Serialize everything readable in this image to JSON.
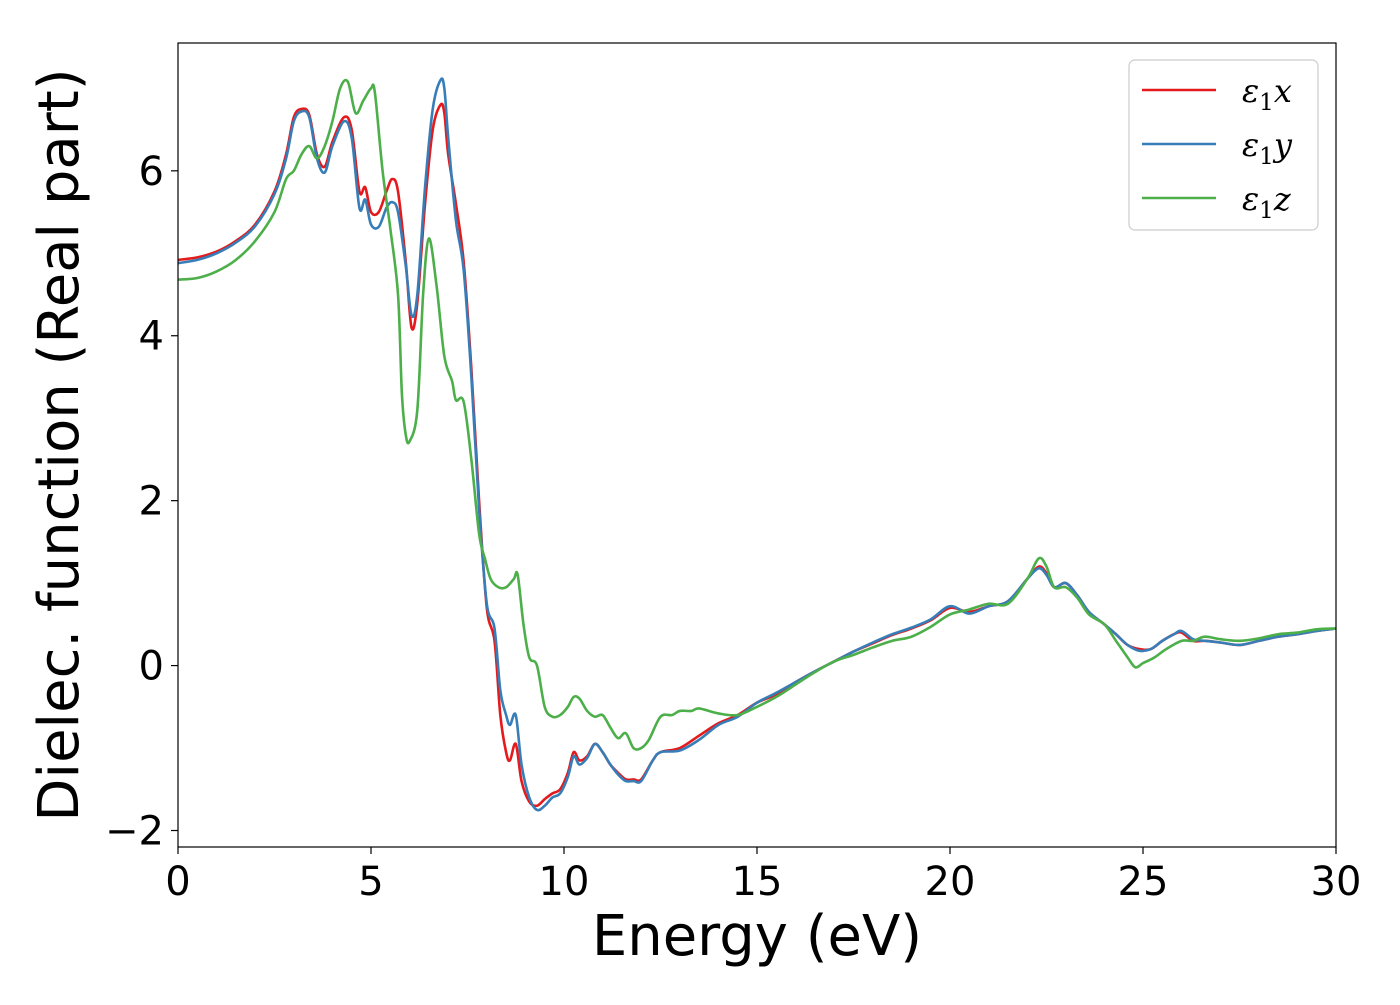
{
  "chart_data": {
    "type": "line",
    "title": "",
    "xlabel": "Energy (eV)",
    "ylabel": "Dielec. function (Real part)",
    "xlim": [
      0,
      30
    ],
    "ylim": [
      -2.2,
      7.55
    ],
    "xticks": [
      0,
      5,
      10,
      15,
      20,
      25,
      30
    ],
    "yticks": [
      -2,
      0,
      2,
      4,
      6
    ],
    "xtick_labels": [
      "0",
      "5",
      "10",
      "15",
      "20",
      "25",
      "30"
    ],
    "ytick_labels": [
      "−2",
      "0",
      "2",
      "4",
      "6"
    ],
    "grid": false,
    "legend_position": "top-right",
    "series": [
      {
        "name": "ε₁x",
        "legend": {
          "base": "ε",
          "sub": "1",
          "var": "x"
        },
        "color": "#e41a1c",
        "points": [
          [
            0,
            4.92
          ],
          [
            0.5,
            4.95
          ],
          [
            1,
            5.02
          ],
          [
            1.5,
            5.15
          ],
          [
            2,
            5.35
          ],
          [
            2.5,
            5.75
          ],
          [
            2.8,
            6.2
          ],
          [
            3.0,
            6.65
          ],
          [
            3.2,
            6.75
          ],
          [
            3.4,
            6.68
          ],
          [
            3.6,
            6.2
          ],
          [
            3.8,
            6.05
          ],
          [
            4.0,
            6.35
          ],
          [
            4.3,
            6.65
          ],
          [
            4.5,
            6.5
          ],
          [
            4.7,
            5.75
          ],
          [
            4.85,
            5.8
          ],
          [
            5.0,
            5.5
          ],
          [
            5.2,
            5.5
          ],
          [
            5.4,
            5.75
          ],
          [
            5.55,
            5.9
          ],
          [
            5.7,
            5.75
          ],
          [
            5.9,
            4.9
          ],
          [
            6.05,
            4.1
          ],
          [
            6.2,
            4.4
          ],
          [
            6.4,
            5.6
          ],
          [
            6.6,
            6.5
          ],
          [
            6.8,
            6.8
          ],
          [
            6.9,
            6.7
          ],
          [
            7.0,
            6.2
          ],
          [
            7.2,
            5.6
          ],
          [
            7.4,
            4.9
          ],
          [
            7.6,
            3.6
          ],
          [
            7.8,
            2.0
          ],
          [
            8.0,
            0.7
          ],
          [
            8.2,
            0.3
          ],
          [
            8.35,
            -0.6
          ],
          [
            8.5,
            -1.05
          ],
          [
            8.6,
            -1.15
          ],
          [
            8.75,
            -0.95
          ],
          [
            8.9,
            -1.4
          ],
          [
            9.1,
            -1.65
          ],
          [
            9.3,
            -1.7
          ],
          [
            9.5,
            -1.62
          ],
          [
            9.7,
            -1.55
          ],
          [
            9.9,
            -1.5
          ],
          [
            10.1,
            -1.3
          ],
          [
            10.25,
            -1.05
          ],
          [
            10.4,
            -1.15
          ],
          [
            10.6,
            -1.1
          ],
          [
            10.8,
            -0.95
          ],
          [
            11.0,
            -1.05
          ],
          [
            11.2,
            -1.2
          ],
          [
            11.4,
            -1.3
          ],
          [
            11.6,
            -1.38
          ],
          [
            11.8,
            -1.38
          ],
          [
            12.0,
            -1.38
          ],
          [
            12.3,
            -1.15
          ],
          [
            12.5,
            -1.05
          ],
          [
            13.0,
            -1.0
          ],
          [
            13.5,
            -0.85
          ],
          [
            14.0,
            -0.7
          ],
          [
            14.5,
            -0.6
          ],
          [
            15.0,
            -0.45
          ],
          [
            15.5,
            -0.35
          ],
          [
            16.0,
            -0.2
          ],
          [
            16.5,
            -0.07
          ],
          [
            17.0,
            0.05
          ],
          [
            17.5,
            0.17
          ],
          [
            18.0,
            0.27
          ],
          [
            18.5,
            0.37
          ],
          [
            19.0,
            0.45
          ],
          [
            19.5,
            0.55
          ],
          [
            20.0,
            0.7
          ],
          [
            20.5,
            0.65
          ],
          [
            21.0,
            0.72
          ],
          [
            21.5,
            0.78
          ],
          [
            22.0,
            1.05
          ],
          [
            22.3,
            1.2
          ],
          [
            22.5,
            1.12
          ],
          [
            22.7,
            0.95
          ],
          [
            23.0,
            1.0
          ],
          [
            23.3,
            0.85
          ],
          [
            23.6,
            0.65
          ],
          [
            24.0,
            0.5
          ],
          [
            24.3,
            0.38
          ],
          [
            24.6,
            0.25
          ],
          [
            24.9,
            0.2
          ],
          [
            25.2,
            0.2
          ],
          [
            25.5,
            0.3
          ],
          [
            25.8,
            0.38
          ],
          [
            26.0,
            0.4
          ],
          [
            26.3,
            0.3
          ],
          [
            26.6,
            0.3
          ],
          [
            27.0,
            0.28
          ],
          [
            27.5,
            0.25
          ],
          [
            28.0,
            0.3
          ],
          [
            28.5,
            0.35
          ],
          [
            29.0,
            0.38
          ],
          [
            29.5,
            0.42
          ],
          [
            30.0,
            0.45
          ]
        ]
      },
      {
        "name": "ε₁y",
        "legend": {
          "base": "ε",
          "sub": "1",
          "var": "y"
        },
        "color": "#377eb8",
        "points": [
          [
            0,
            4.88
          ],
          [
            0.5,
            4.92
          ],
          [
            1,
            5.0
          ],
          [
            1.5,
            5.13
          ],
          [
            2,
            5.33
          ],
          [
            2.5,
            5.72
          ],
          [
            2.8,
            6.15
          ],
          [
            3.0,
            6.6
          ],
          [
            3.2,
            6.72
          ],
          [
            3.4,
            6.65
          ],
          [
            3.6,
            6.15
          ],
          [
            3.8,
            5.98
          ],
          [
            4.0,
            6.3
          ],
          [
            4.3,
            6.6
          ],
          [
            4.5,
            6.4
          ],
          [
            4.7,
            5.55
          ],
          [
            4.85,
            5.65
          ],
          [
            5.0,
            5.35
          ],
          [
            5.2,
            5.32
          ],
          [
            5.4,
            5.55
          ],
          [
            5.55,
            5.62
          ],
          [
            5.7,
            5.5
          ],
          [
            5.9,
            4.85
          ],
          [
            6.05,
            4.25
          ],
          [
            6.2,
            4.5
          ],
          [
            6.4,
            5.8
          ],
          [
            6.6,
            6.75
          ],
          [
            6.8,
            7.1
          ],
          [
            6.9,
            7.0
          ],
          [
            7.0,
            6.4
          ],
          [
            7.2,
            5.4
          ],
          [
            7.4,
            4.8
          ],
          [
            7.6,
            3.5
          ],
          [
            7.8,
            1.9
          ],
          [
            8.0,
            0.75
          ],
          [
            8.2,
            0.45
          ],
          [
            8.35,
            -0.3
          ],
          [
            8.5,
            -0.6
          ],
          [
            8.6,
            -0.72
          ],
          [
            8.75,
            -0.6
          ],
          [
            8.9,
            -1.2
          ],
          [
            9.1,
            -1.6
          ],
          [
            9.3,
            -1.75
          ],
          [
            9.5,
            -1.7
          ],
          [
            9.7,
            -1.6
          ],
          [
            9.9,
            -1.55
          ],
          [
            10.1,
            -1.35
          ],
          [
            10.25,
            -1.1
          ],
          [
            10.4,
            -1.2
          ],
          [
            10.6,
            -1.12
          ],
          [
            10.8,
            -0.95
          ],
          [
            11.0,
            -1.05
          ],
          [
            11.2,
            -1.2
          ],
          [
            11.4,
            -1.32
          ],
          [
            11.6,
            -1.4
          ],
          [
            11.8,
            -1.4
          ],
          [
            12.0,
            -1.4
          ],
          [
            12.3,
            -1.15
          ],
          [
            12.5,
            -1.05
          ],
          [
            13.0,
            -1.03
          ],
          [
            13.5,
            -0.9
          ],
          [
            14.0,
            -0.72
          ],
          [
            14.5,
            -0.62
          ],
          [
            15.0,
            -0.45
          ],
          [
            15.5,
            -0.33
          ],
          [
            16.0,
            -0.2
          ],
          [
            16.5,
            -0.07
          ],
          [
            17.0,
            0.05
          ],
          [
            17.5,
            0.17
          ],
          [
            18.0,
            0.28
          ],
          [
            18.5,
            0.38
          ],
          [
            19.0,
            0.46
          ],
          [
            19.5,
            0.56
          ],
          [
            20.0,
            0.72
          ],
          [
            20.5,
            0.63
          ],
          [
            21.0,
            0.72
          ],
          [
            21.5,
            0.78
          ],
          [
            22.0,
            1.05
          ],
          [
            22.3,
            1.18
          ],
          [
            22.5,
            1.1
          ],
          [
            22.7,
            0.95
          ],
          [
            23.0,
            1.0
          ],
          [
            23.3,
            0.85
          ],
          [
            23.6,
            0.65
          ],
          [
            24.0,
            0.5
          ],
          [
            24.3,
            0.38
          ],
          [
            24.6,
            0.25
          ],
          [
            24.9,
            0.18
          ],
          [
            25.2,
            0.2
          ],
          [
            25.5,
            0.3
          ],
          [
            25.8,
            0.38
          ],
          [
            26.0,
            0.42
          ],
          [
            26.3,
            0.32
          ],
          [
            26.6,
            0.3
          ],
          [
            27.0,
            0.28
          ],
          [
            27.5,
            0.25
          ],
          [
            28.0,
            0.3
          ],
          [
            28.5,
            0.35
          ],
          [
            29.0,
            0.38
          ],
          [
            29.5,
            0.42
          ],
          [
            30.0,
            0.45
          ]
        ]
      },
      {
        "name": "ε₁z",
        "legend": {
          "base": "ε",
          "sub": "1",
          "var": "z"
        },
        "color": "#4daf4a",
        "points": [
          [
            0,
            4.68
          ],
          [
            0.5,
            4.7
          ],
          [
            1,
            4.78
          ],
          [
            1.5,
            4.92
          ],
          [
            2,
            5.15
          ],
          [
            2.5,
            5.5
          ],
          [
            2.8,
            5.9
          ],
          [
            3.0,
            6.0
          ],
          [
            3.2,
            6.2
          ],
          [
            3.4,
            6.3
          ],
          [
            3.6,
            6.15
          ],
          [
            3.8,
            6.3
          ],
          [
            4.0,
            6.6
          ],
          [
            4.2,
            7.0
          ],
          [
            4.4,
            7.08
          ],
          [
            4.6,
            6.7
          ],
          [
            4.8,
            6.85
          ],
          [
            5.0,
            7.0
          ],
          [
            5.1,
            6.95
          ],
          [
            5.3,
            6.0
          ],
          [
            5.5,
            5.3
          ],
          [
            5.7,
            4.5
          ],
          [
            5.8,
            3.3
          ],
          [
            5.9,
            2.8
          ],
          [
            6.0,
            2.72
          ],
          [
            6.2,
            3.1
          ],
          [
            6.35,
            4.5
          ],
          [
            6.5,
            5.18
          ],
          [
            6.7,
            4.6
          ],
          [
            6.9,
            3.75
          ],
          [
            7.1,
            3.45
          ],
          [
            7.2,
            3.22
          ],
          [
            7.4,
            3.2
          ],
          [
            7.6,
            2.5
          ],
          [
            7.8,
            1.6
          ],
          [
            7.95,
            1.3
          ],
          [
            8.1,
            1.05
          ],
          [
            8.3,
            0.95
          ],
          [
            8.5,
            0.95
          ],
          [
            8.7,
            1.05
          ],
          [
            8.8,
            1.1
          ],
          [
            8.95,
            0.5
          ],
          [
            9.1,
            0.1
          ],
          [
            9.3,
            0.0
          ],
          [
            9.5,
            -0.5
          ],
          [
            9.7,
            -0.62
          ],
          [
            9.9,
            -0.6
          ],
          [
            10.1,
            -0.5
          ],
          [
            10.25,
            -0.38
          ],
          [
            10.4,
            -0.4
          ],
          [
            10.6,
            -0.55
          ],
          [
            10.8,
            -0.62
          ],
          [
            11.0,
            -0.6
          ],
          [
            11.2,
            -0.75
          ],
          [
            11.4,
            -0.88
          ],
          [
            11.6,
            -0.82
          ],
          [
            11.8,
            -1.0
          ],
          [
            12.0,
            -1.0
          ],
          [
            12.2,
            -0.9
          ],
          [
            12.5,
            -0.62
          ],
          [
            12.8,
            -0.6
          ],
          [
            13.0,
            -0.55
          ],
          [
            13.3,
            -0.55
          ],
          [
            13.5,
            -0.52
          ],
          [
            14.0,
            -0.58
          ],
          [
            14.5,
            -0.6
          ],
          [
            15.0,
            -0.5
          ],
          [
            15.5,
            -0.38
          ],
          [
            16.0,
            -0.23
          ],
          [
            16.5,
            -0.08
          ],
          [
            17.0,
            0.05
          ],
          [
            17.5,
            0.13
          ],
          [
            18.0,
            0.22
          ],
          [
            18.5,
            0.3
          ],
          [
            19.0,
            0.35
          ],
          [
            19.5,
            0.47
          ],
          [
            20.0,
            0.62
          ],
          [
            20.5,
            0.68
          ],
          [
            21.0,
            0.75
          ],
          [
            21.5,
            0.75
          ],
          [
            22.0,
            1.05
          ],
          [
            22.3,
            1.3
          ],
          [
            22.5,
            1.2
          ],
          [
            22.7,
            0.95
          ],
          [
            23.0,
            0.95
          ],
          [
            23.3,
            0.82
          ],
          [
            23.6,
            0.62
          ],
          [
            24.0,
            0.5
          ],
          [
            24.3,
            0.3
          ],
          [
            24.6,
            0.1
          ],
          [
            24.8,
            -0.02
          ],
          [
            25.0,
            0.03
          ],
          [
            25.3,
            0.1
          ],
          [
            25.6,
            0.2
          ],
          [
            26.0,
            0.3
          ],
          [
            26.3,
            0.3
          ],
          [
            26.6,
            0.35
          ],
          [
            27.0,
            0.32
          ],
          [
            27.5,
            0.3
          ],
          [
            28.0,
            0.33
          ],
          [
            28.5,
            0.38
          ],
          [
            29.0,
            0.4
          ],
          [
            29.5,
            0.44
          ],
          [
            30.0,
            0.45
          ]
        ]
      }
    ]
  }
}
